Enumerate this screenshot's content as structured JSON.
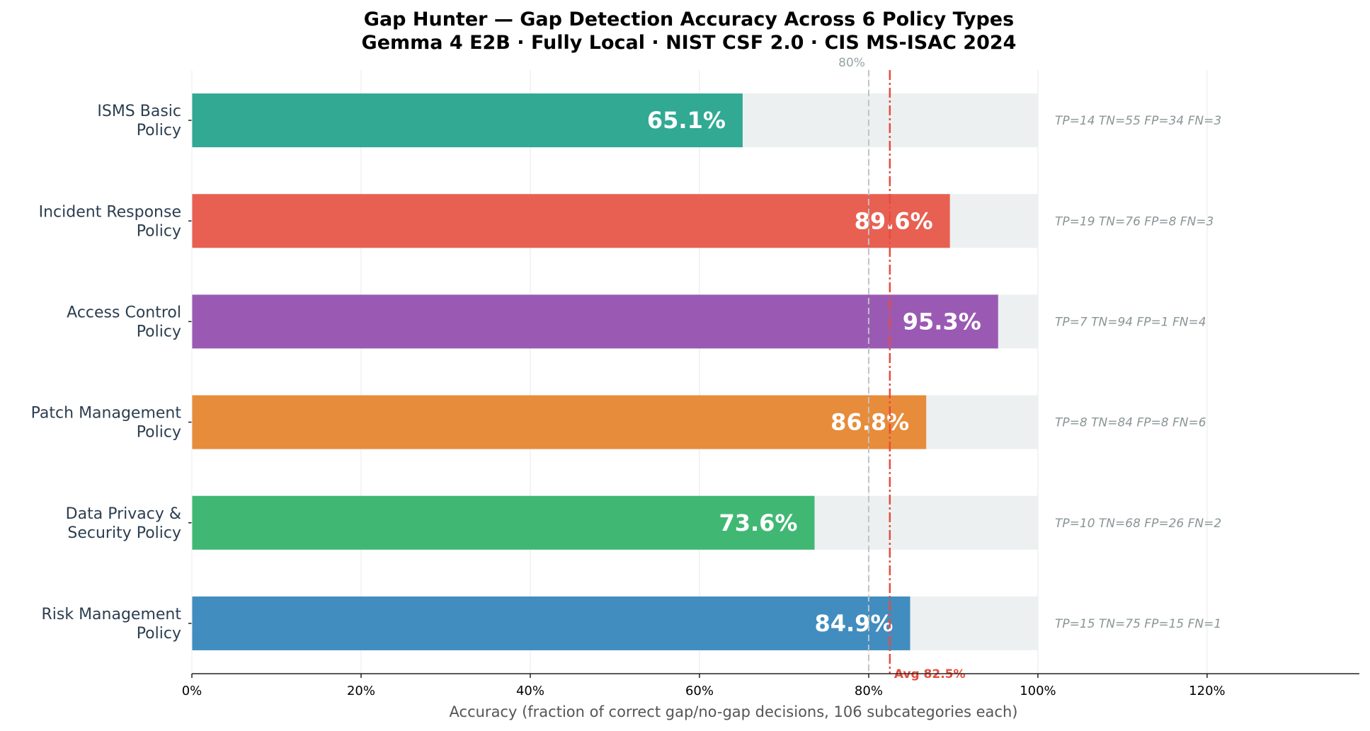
{
  "chart_data": {
    "type": "bar",
    "orientation": "horizontal",
    "title": "Gap Hunter — Gap Detection Accuracy Across 6 Policy Types",
    "subtitle": "Gemma 4 E2B · Fully Local · NIST CSF 2.0 · CIS MS-ISAC 2024",
    "xlabel": "Accuracy  (fraction of correct gap/no-gap decisions, 106 subcategories each)",
    "xlim": [
      0,
      138
    ],
    "xticks": [
      0,
      20,
      40,
      60,
      80,
      100,
      120
    ],
    "xtick_labels": [
      "0%",
      "20%",
      "40%",
      "60%",
      "80%",
      "100%",
      "120%"
    ],
    "grid": "vertical",
    "categories": [
      [
        "ISMS Basic",
        "Policy"
      ],
      [
        "Incident Response",
        "Policy"
      ],
      [
        "Access Control",
        "Policy"
      ],
      [
        "Patch Management",
        "Policy"
      ],
      [
        "Data Privacy &",
        "Security Policy"
      ],
      [
        "Risk Management",
        "Policy"
      ]
    ],
    "values": [
      65.1,
      89.6,
      95.3,
      86.8,
      73.6,
      84.9
    ],
    "value_labels": [
      "65.1%",
      "89.6%",
      "95.3%",
      "86.8%",
      "73.6%",
      "84.9%"
    ],
    "colors": [
      "#31a993",
      "#e86052",
      "#9a5ab4",
      "#e78c3b",
      "#40b874",
      "#418dc0"
    ],
    "background_bar": 100,
    "background_color": "#ecf0f1",
    "annotations": [
      "TP=14  TN=55  FP=34  FN=3",
      "TP=19  TN=76  FP=8  FN=3",
      "TP=7  TN=94  FP=1  FN=4",
      "TP=8  TN=84  FP=8  FN=6",
      "TP=10  TN=68  FP=26  FN=2",
      "TP=15  TN=75  FP=15  FN=1"
    ],
    "target_line": {
      "value": 80,
      "label": "80%",
      "color": "#bdc3c7"
    },
    "average_line": {
      "value": 82.5,
      "label": "Avg 82.5%",
      "color": "#e74c3c"
    }
  }
}
